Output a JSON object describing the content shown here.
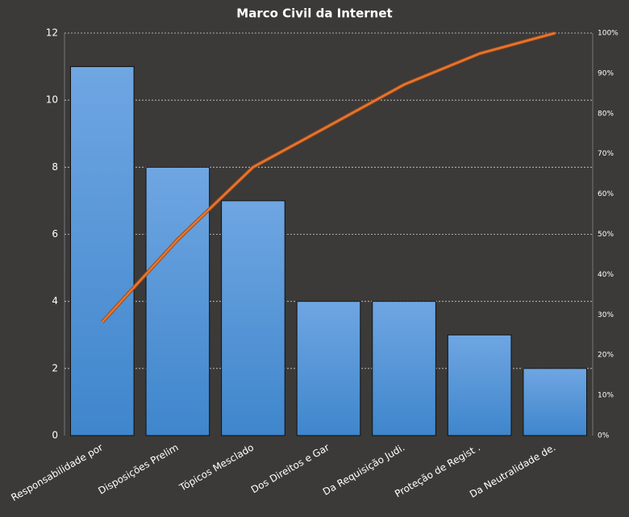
{
  "chart_data": {
    "type": "pareto",
    "title": "Marco Civil da Internet",
    "categories": [
      "Responsabilidade por",
      "Disposições Prelim",
      "Tópicos Mesclado",
      "Dos Direitos e Gar",
      "Da Requisição Judi.",
      "Proteção de Regist .",
      "Da Neutralidade de."
    ],
    "values": [
      11,
      8,
      7,
      4,
      4,
      3,
      2
    ],
    "color": "#4a90d6",
    "cumulative_values": [
      28.2,
      48.7,
      66.7,
      76.9,
      87.2,
      94.9,
      100
    ],
    "line_color": "#e8762d",
    "ylim": [
      0,
      12
    ],
    "yticks": [
      0,
      2,
      4,
      6,
      8,
      10,
      12
    ],
    "y2lim": [
      0,
      100
    ],
    "y2ticks": [
      {
        "value": 0,
        "label": "0%"
      },
      {
        "value": 10,
        "label": "10%"
      },
      {
        "value": 20,
        "label": "20%"
      },
      {
        "value": 30,
        "label": "30%"
      },
      {
        "value": 40,
        "label": "40%"
      },
      {
        "value": 50,
        "label": "50%"
      },
      {
        "value": 60,
        "label": "60%"
      },
      {
        "value": 70,
        "label": "70%"
      },
      {
        "value": 80,
        "label": "80%"
      },
      {
        "value": 90,
        "label": "90%"
      },
      {
        "value": 100,
        "label": "100%"
      }
    ],
    "grid": true
  }
}
